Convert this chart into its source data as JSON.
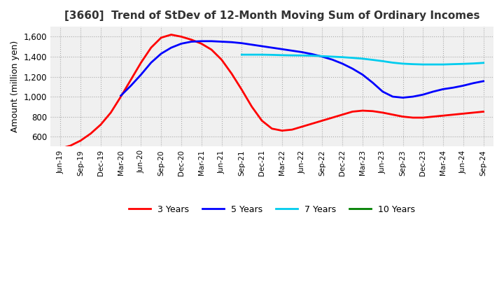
{
  "title": "[3660]  Trend of StDev of 12-Month Moving Sum of Ordinary Incomes",
  "ylabel": "Amount (million yen)",
  "ylim": [
    500,
    1700
  ],
  "yticks": [
    600,
    800,
    1000,
    1200,
    1400,
    1600
  ],
  "plot_bg_color": "#f0f0f0",
  "background_color": "#ffffff",
  "lines": {
    "3 Years": {
      "color": "#ff0000",
      "x": [
        0,
        1,
        2,
        3,
        4,
        5,
        6,
        7,
        8,
        9,
        10,
        11,
        12,
        13,
        14,
        15,
        16,
        17,
        18,
        19,
        20,
        21,
        22,
        23,
        24,
        25,
        26,
        27,
        28,
        29,
        30,
        31,
        32,
        33,
        34,
        35,
        36,
        37,
        38,
        39,
        40,
        41,
        42
      ],
      "y": [
        480,
        510,
        560,
        630,
        720,
        840,
        1000,
        1170,
        1340,
        1490,
        1590,
        1620,
        1600,
        1570,
        1530,
        1470,
        1370,
        1230,
        1070,
        900,
        760,
        680,
        660,
        670,
        700,
        730,
        760,
        790,
        820,
        850,
        860,
        855,
        840,
        820,
        800,
        790,
        790,
        800,
        810,
        820,
        830,
        840,
        850
      ]
    },
    "5 Years": {
      "color": "#0000ff",
      "x": [
        6,
        7,
        8,
        9,
        10,
        11,
        12,
        13,
        14,
        15,
        16,
        17,
        18,
        19,
        20,
        21,
        22,
        23,
        24,
        25,
        26,
        27,
        28,
        29,
        30,
        31,
        32,
        33,
        34,
        35,
        36,
        37,
        38,
        39,
        40,
        41,
        42
      ],
      "y": [
        1010,
        1110,
        1220,
        1340,
        1430,
        1490,
        1530,
        1550,
        1555,
        1555,
        1550,
        1545,
        1535,
        1520,
        1505,
        1490,
        1475,
        1460,
        1445,
        1425,
        1400,
        1370,
        1330,
        1280,
        1220,
        1140,
        1050,
        1000,
        990,
        1000,
        1020,
        1050,
        1075,
        1090,
        1110,
        1135,
        1155
      ]
    },
    "7 Years": {
      "color": "#00ccee",
      "x": [
        18,
        19,
        20,
        21,
        22,
        23,
        24,
        25,
        26,
        27,
        28,
        29,
        30,
        31,
        32,
        33,
        34,
        35,
        36,
        37,
        38,
        39,
        40,
        41,
        42
      ],
      "y": [
        1420,
        1420,
        1420,
        1418,
        1415,
        1413,
        1412,
        1410,
        1405,
        1400,
        1395,
        1388,
        1380,
        1368,
        1355,
        1340,
        1330,
        1325,
        1322,
        1322,
        1322,
        1325,
        1328,
        1332,
        1338
      ]
    },
    "10 Years": {
      "color": "#008000",
      "x": [],
      "y": []
    }
  },
  "x_labels": [
    "Jun-19",
    "Sep-19",
    "Dec-19",
    "Mar-20",
    "Jun-20",
    "Sep-20",
    "Dec-20",
    "Mar-21",
    "Jun-21",
    "Sep-21",
    "Dec-21",
    "Mar-22",
    "Jun-22",
    "Sep-22",
    "Dec-22",
    "Mar-23",
    "Jun-23",
    "Sep-23",
    "Dec-23",
    "Mar-24",
    "Jun-24",
    "Sep-24"
  ],
  "legend_order": [
    "3 Years",
    "5 Years",
    "7 Years",
    "10 Years"
  ],
  "legend_colors": [
    "#ff0000",
    "#0000ff",
    "#00ccee",
    "#008000"
  ]
}
